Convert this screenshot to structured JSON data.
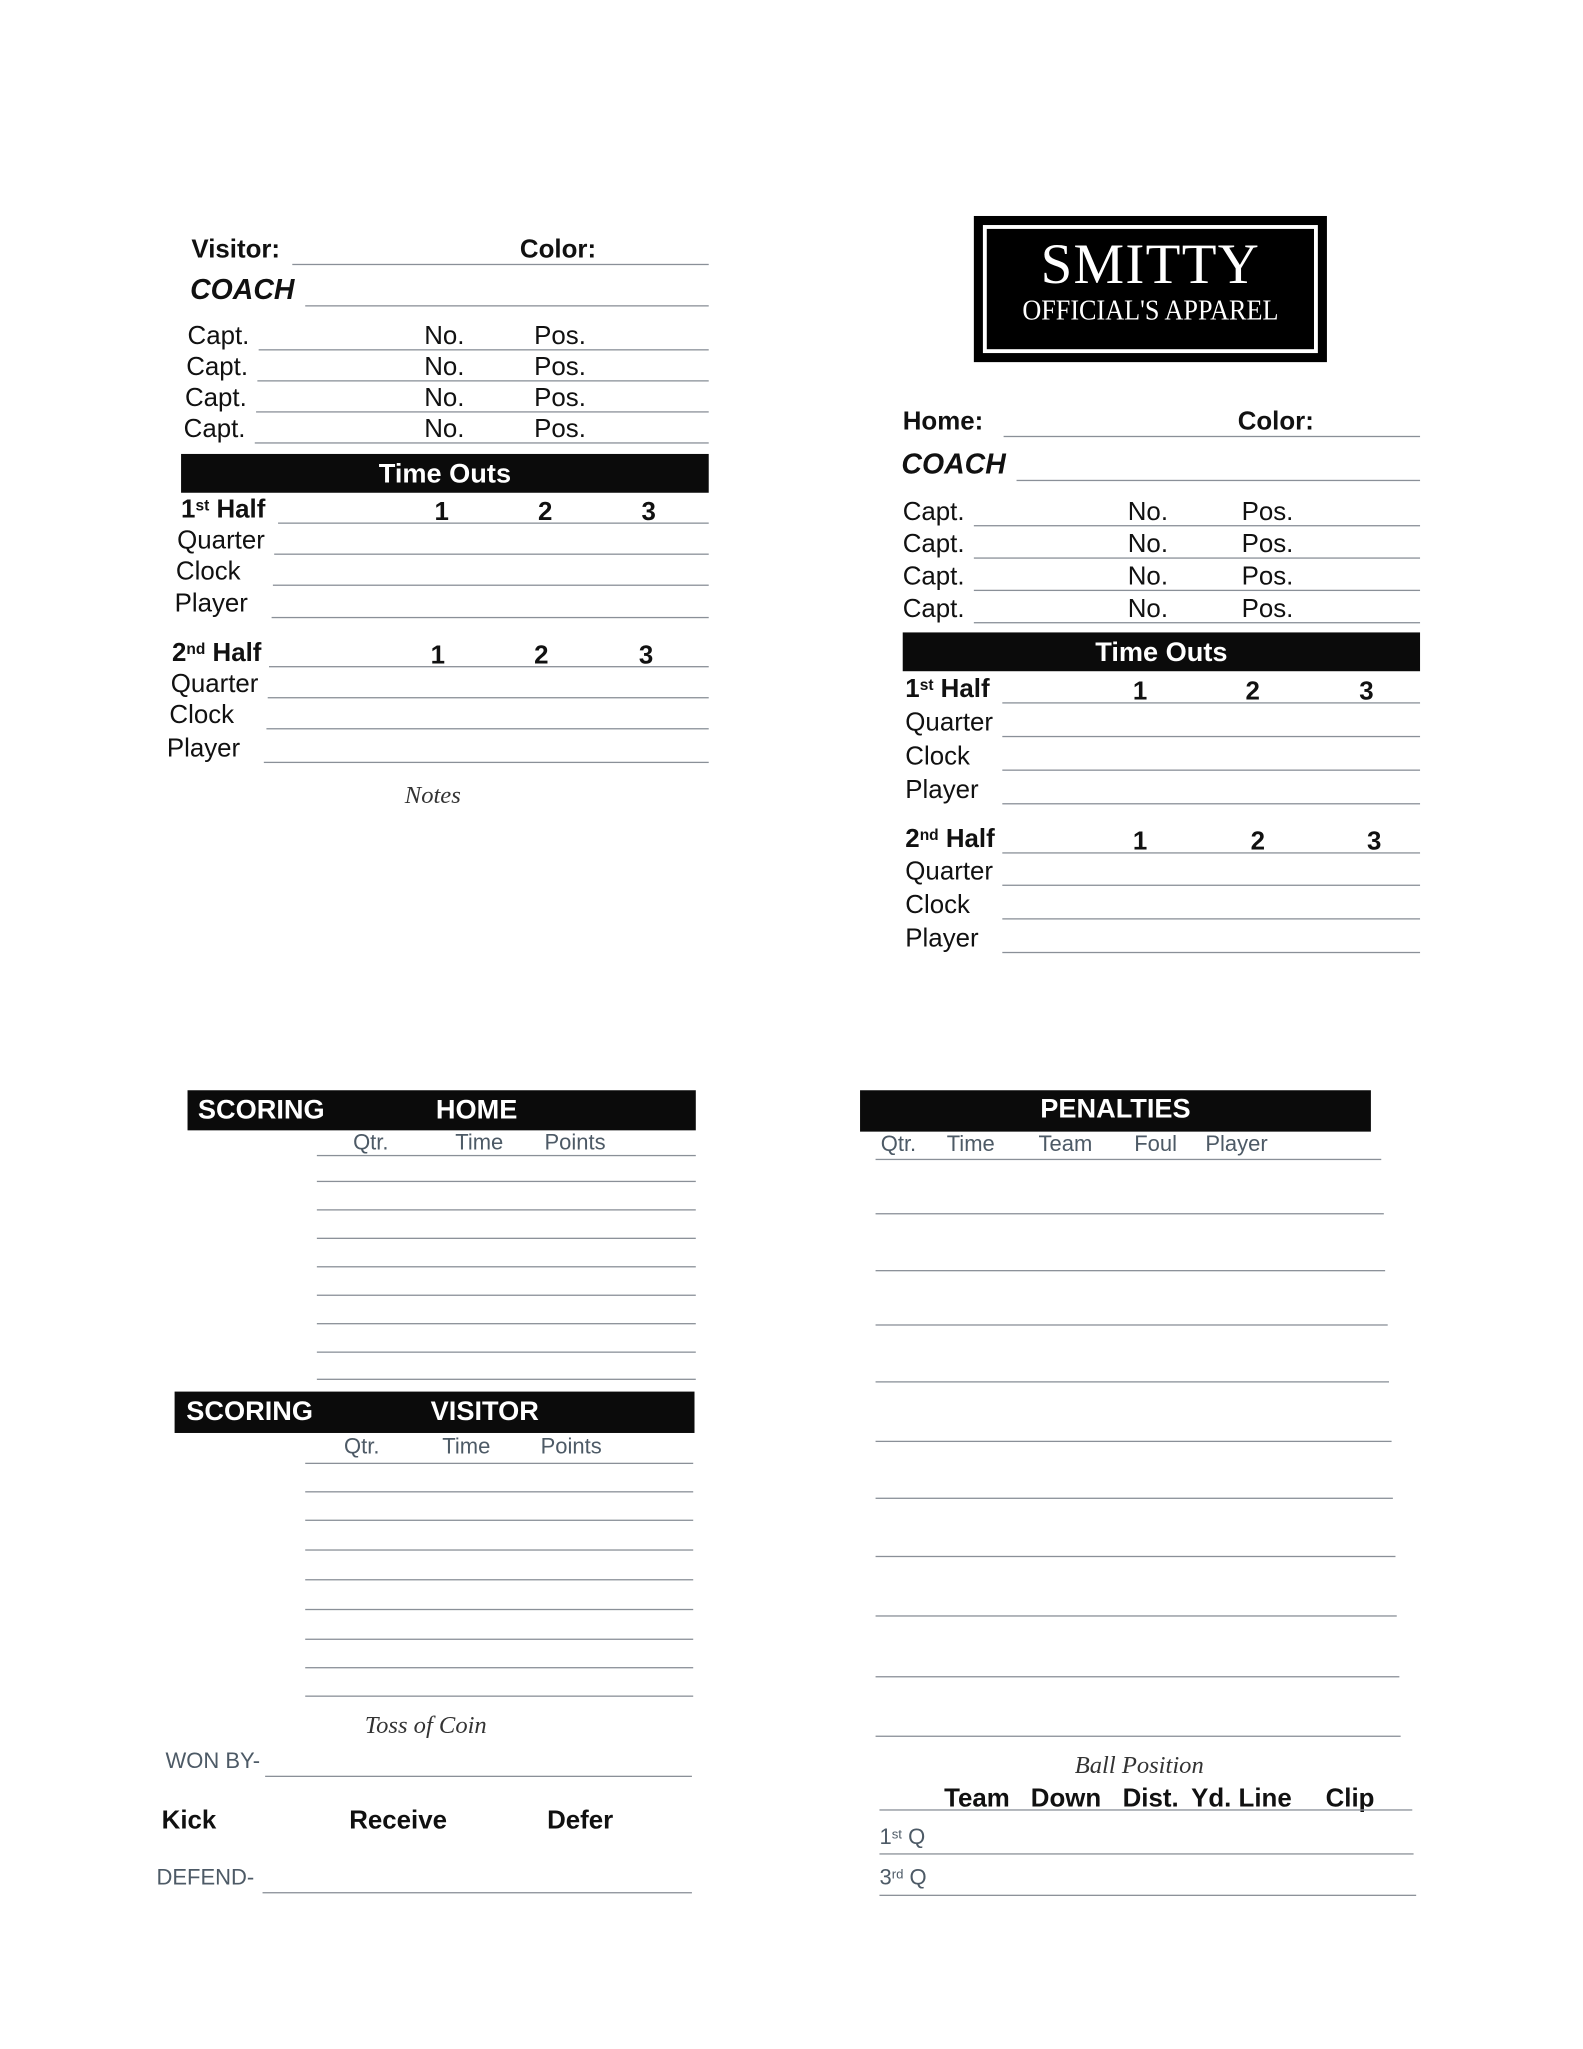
{
  "logo": {
    "brand": "SMITTY",
    "tagline": "OFFICIAL'S APPAREL"
  },
  "visitor": {
    "team_label": "Visitor:",
    "color_label": "Color:",
    "coach_label": "COACH",
    "captains": [
      {
        "capt": "Capt.",
        "no": "No.",
        "pos": "Pos."
      },
      {
        "capt": "Capt.",
        "no": "No.",
        "pos": "Pos."
      },
      {
        "capt": "Capt.",
        "no": "No.",
        "pos": "Pos."
      },
      {
        "capt": "Capt.",
        "no": "No.",
        "pos": "Pos."
      }
    ],
    "timeouts": {
      "header": "Time Outs",
      "halves": [
        {
          "num": "1",
          "suffix": "st",
          "label": " Half",
          "cols": [
            "1",
            "2",
            "3"
          ],
          "rows": [
            "Quarter",
            "Clock",
            "Player"
          ]
        },
        {
          "num": "2",
          "suffix": "nd",
          "label": " Half",
          "cols": [
            "1",
            "2",
            "3"
          ],
          "rows": [
            "Quarter",
            "Clock",
            "Player"
          ]
        }
      ]
    },
    "notes_label": "Notes"
  },
  "home": {
    "team_label": "Home:",
    "color_label": "Color:",
    "coach_label": "COACH",
    "captains": [
      {
        "capt": "Capt.",
        "no": "No.",
        "pos": "Pos."
      },
      {
        "capt": "Capt.",
        "no": "No.",
        "pos": "Pos."
      },
      {
        "capt": "Capt.",
        "no": "No.",
        "pos": "Pos."
      },
      {
        "capt": "Capt.",
        "no": "No.",
        "pos": "Pos."
      }
    ],
    "timeouts": {
      "header": "Time Outs",
      "halves": [
        {
          "num": "1",
          "suffix": "st",
          "label": " Half",
          "cols": [
            "1",
            "2",
            "3"
          ],
          "rows": [
            "Quarter",
            "Clock",
            "Player"
          ]
        },
        {
          "num": "2",
          "suffix": "nd",
          "label": " Half",
          "cols": [
            "1",
            "2",
            "3"
          ],
          "rows": [
            "Quarter",
            "Clock",
            "Player"
          ]
        }
      ]
    }
  },
  "scoring_home": {
    "title": "SCORING",
    "team": "HOME",
    "columns": [
      "Qtr.",
      "Time",
      "Points"
    ]
  },
  "scoring_visitor": {
    "title": "SCORING",
    "team": "VISITOR",
    "columns": [
      "Qtr.",
      "Time",
      "Points"
    ]
  },
  "toss": {
    "title": "Toss of Coin",
    "won_by": "WON BY-",
    "options": [
      "Kick",
      "Receive",
      "Defer"
    ],
    "defend": "DEFEND-"
  },
  "penalties": {
    "title": "PENALTIES",
    "columns": [
      "Qtr.",
      "Time",
      "Team",
      "Foul",
      "Player"
    ]
  },
  "ball_position": {
    "title": "Ball Position",
    "columns": [
      "Team",
      "Down",
      "Dist.",
      "Yd. Line",
      "Clip"
    ],
    "rows": [
      {
        "num": "1",
        "suffix": "st",
        "label": " Q"
      },
      {
        "num": "3",
        "suffix": "rd",
        "label": " Q"
      }
    ]
  }
}
